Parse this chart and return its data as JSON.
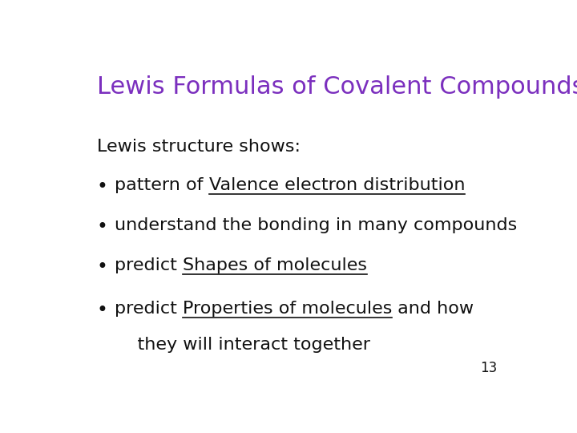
{
  "title": "Lewis Formulas of Covalent Compounds",
  "title_color": "#7B2FBE",
  "title_fontsize": 22,
  "background_color": "#FFFFFF",
  "intro_text": "Lewis structure shows:",
  "body_fontsize": 16,
  "text_color": "#111111",
  "page_number": "13",
  "bullets": [
    {
      "plain_before": "pattern of ",
      "underline": "Valence electron distribution",
      "plain_after": ""
    },
    {
      "plain_before": "understand the bonding in many compounds",
      "underline": "",
      "plain_after": ""
    },
    {
      "plain_before": "predict ",
      "underline": "Shapes of molecules",
      "plain_after": ""
    },
    {
      "plain_before": "predict ",
      "underline": "Properties of molecules",
      "plain_after": " and how"
    }
  ],
  "last_line": "    they will interact together"
}
